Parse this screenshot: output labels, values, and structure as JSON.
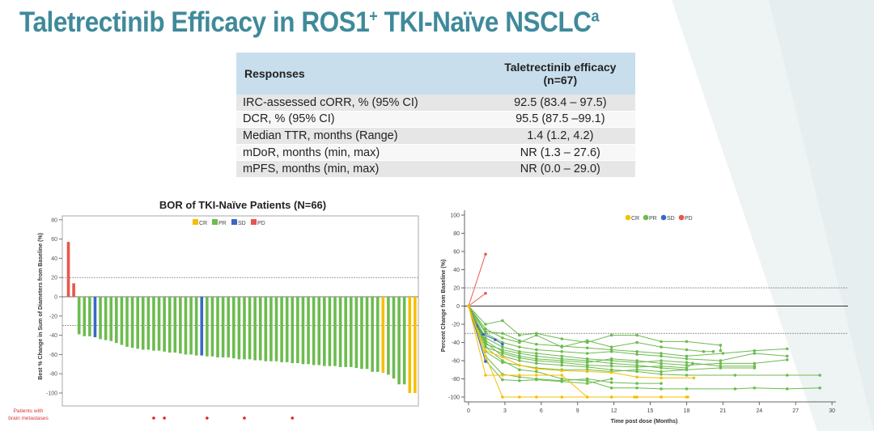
{
  "slide": {
    "title": "Taletrectinib Efficacy in ROS1",
    "title_sup1": "+",
    "title_rest": " TKI-Naïve NSCLC",
    "title_sup2": "a"
  },
  "table": {
    "headers": [
      "Responses",
      "Taletrectinib efficacy",
      "(n=67)"
    ],
    "rows": [
      [
        "IRC-assessed cORR, % (95% CI)",
        "92.5 (83.4 – 97.5)"
      ],
      [
        "DCR, % (95% CI)",
        "95.5 (87.5 –99.1)"
      ],
      [
        "Median TTR, months (Range)",
        "1.4 (1.2, 4.2)"
      ],
      [
        "mDoR, months (min, max)",
        "NR (1.3 – 27.6)"
      ],
      [
        "mPFS, months (min, max)",
        "NR (0.0 – 29.0)"
      ]
    ]
  },
  "colors": {
    "CR": "#f5c000",
    "PR": "#6dbb4f",
    "SD": "#3a67c4",
    "PD": "#e8554e",
    "title": "#3f8a9a"
  },
  "chart_data": [
    {
      "type": "bar",
      "title": "BOR of TKI-Naïve Patients (N=66)",
      "ylabel": "Best % Change in Sum of Diameters from Baseline (%)",
      "ylim": [
        -100,
        80
      ],
      "yticks": [
        "80",
        "60",
        "40",
        "20",
        "0",
        "-20",
        "-40",
        "-60",
        "-80",
        "-100"
      ],
      "reference_lines": [
        20,
        -30
      ],
      "legend": [
        "CR",
        "PR",
        "SD",
        "PD"
      ],
      "legend_position": "top-center",
      "values": [
        57,
        14,
        -39,
        -41,
        -41,
        -42,
        -44,
        -45,
        -46,
        -48,
        -50,
        -52,
        -53,
        -54,
        -55,
        -55,
        -56,
        -56,
        -57,
        -58,
        -58,
        -59,
        -60,
        -60,
        -61,
        -61,
        -62,
        -62,
        -63,
        -63,
        -63,
        -64,
        -65,
        -65,
        -65,
        -66,
        -66,
        -67,
        -67,
        -67,
        -68,
        -68,
        -69,
        -69,
        -70,
        -70,
        -71,
        -71,
        -72,
        -72,
        -72,
        -73,
        -73,
        -73,
        -74,
        -75,
        -75,
        -78,
        -78,
        -79,
        -81,
        -85,
        -91,
        -91,
        -100,
        -100
      ],
      "response": [
        "PD",
        "PD",
        "PR",
        "PR",
        "PR",
        "SD",
        "PR",
        "PR",
        "PR",
        "PR",
        "PR",
        "PR",
        "PR",
        "PR",
        "PR",
        "PR",
        "PR",
        "PR",
        "PR",
        "PR",
        "PR",
        "PR",
        "PR",
        "PR",
        "PR",
        "SD",
        "PR",
        "PR",
        "PR",
        "PR",
        "PR",
        "PR",
        "PR",
        "PR",
        "PR",
        "PR",
        "PR",
        "PR",
        "PR",
        "PR",
        "PR",
        "PR",
        "PR",
        "PR",
        "PR",
        "PR",
        "PR",
        "PR",
        "PR",
        "PR",
        "PR",
        "PR",
        "PR",
        "PR",
        "PR",
        "PR",
        "PR",
        "PR",
        "PR",
        "CR",
        "PR",
        "PR",
        "PR",
        "PR",
        "CR",
        "CR"
      ],
      "brain_metastases_label": [
        "Patients with",
        "brain metastases"
      ],
      "brain_metastases_indices": [
        16,
        18,
        26,
        33,
        42
      ]
    },
    {
      "type": "line",
      "xlabel": "Time post dose (Months)",
      "ylabel": "Percent Change from Baseline (%)",
      "xlim": [
        0,
        30
      ],
      "ylim": [
        -100,
        100
      ],
      "xticks": [
        "0",
        "3",
        "6",
        "9",
        "12",
        "15",
        "18",
        "21",
        "24",
        "27",
        "30"
      ],
      "yticks": [
        "100",
        "80",
        "60",
        "40",
        "20",
        "0",
        "-20",
        "-40",
        "-60",
        "-80",
        "-100"
      ],
      "reference_lines": [
        20,
        0,
        -30
      ],
      "legend": [
        "CR",
        "PR",
        "SD",
        "PD"
      ],
      "legend_position": "top-center",
      "series": [
        {
          "group": "PD",
          "points": [
            [
              0,
              0
            ],
            [
              1.4,
              57
            ]
          ]
        },
        {
          "group": "PD",
          "points": [
            [
              0,
              0
            ],
            [
              1.4,
              14
            ]
          ]
        },
        {
          "group": "PR",
          "points": [
            [
              0,
              0
            ],
            [
              1.4,
              -20
            ],
            [
              2.8,
              -16
            ],
            [
              4.2,
              -32
            ],
            [
              5.6,
              -30
            ],
            [
              7.7,
              -36
            ],
            [
              9.8,
              -40
            ],
            [
              11.8,
              -32
            ],
            [
              13.9,
              -32
            ],
            [
              15.9,
              -39
            ],
            [
              18,
              -39
            ],
            [
              20.8,
              -43
            ],
            [
              20.8,
              -49
            ]
          ]
        },
        {
          "group": "PR",
          "points": [
            [
              0,
              0
            ],
            [
              1.4,
              -28
            ],
            [
              2.8,
              -30
            ],
            [
              4.2,
              -38
            ],
            [
              5.6,
              -42
            ],
            [
              7.7,
              -44
            ],
            [
              9.8,
              -46
            ],
            [
              11.8,
              -48
            ],
            [
              13.9,
              -50
            ],
            [
              15.9,
              -52
            ],
            [
              18,
              -55
            ],
            [
              21,
              -52
            ],
            [
              23.6,
              -49
            ],
            [
              26.3,
              -47
            ]
          ]
        },
        {
          "group": "PR",
          "points": [
            [
              0,
              0
            ],
            [
              1.4,
              -35
            ],
            [
              2.8,
              -45
            ],
            [
              4.2,
              -50
            ],
            [
              5.6,
              -52
            ],
            [
              7.7,
              -55
            ],
            [
              9.8,
              -58
            ],
            [
              11.8,
              -60
            ],
            [
              13.9,
              -62
            ],
            [
              15.9,
              -60
            ],
            [
              18,
              -62
            ],
            [
              20.8,
              -66
            ],
            [
              23.6,
              -66
            ]
          ]
        },
        {
          "group": "PR",
          "points": [
            [
              0,
              0
            ],
            [
              1.4,
              -40
            ],
            [
              2.8,
              -55
            ],
            [
              4.2,
              -60
            ],
            [
              5.6,
              -63
            ],
            [
              7.7,
              -65
            ],
            [
              9.8,
              -67
            ],
            [
              11.8,
              -70
            ],
            [
              13.9,
              -72
            ],
            [
              15.9,
              -75
            ],
            [
              18,
              -76
            ],
            [
              22,
              -76
            ],
            [
              26.3,
              -76
            ],
            [
              29,
              -76
            ]
          ]
        },
        {
          "group": "PR",
          "points": [
            [
              0,
              0
            ],
            [
              1.4,
              -45
            ],
            [
              2.8,
              -60
            ],
            [
              4.2,
              -70
            ],
            [
              5.6,
              -72
            ],
            [
              7.7,
              -80
            ],
            [
              9.8,
              -82
            ],
            [
              11.8,
              -90
            ],
            [
              13.9,
              -90
            ],
            [
              15.9,
              -91
            ],
            [
              18,
              -91
            ],
            [
              22,
              -91
            ],
            [
              23.6,
              -90
            ],
            [
              26.3,
              -91
            ],
            [
              29,
              -90
            ]
          ]
        },
        {
          "group": "PR",
          "points": [
            [
              0,
              0
            ],
            [
              1.4,
              -30
            ],
            [
              2.8,
              -40
            ],
            [
              4.2,
              -45
            ],
            [
              5.6,
              -48
            ],
            [
              7.7,
              -50
            ],
            [
              9.8,
              -52
            ],
            [
              11.8,
              -50
            ],
            [
              13.9,
              -53
            ],
            [
              15.9,
              -55
            ],
            [
              18,
              -58
            ],
            [
              20.8,
              -60
            ],
            [
              23.6,
              -52
            ],
            [
              26.3,
              -55
            ]
          ]
        },
        {
          "group": "PR",
          "points": [
            [
              0,
              0
            ],
            [
              1.4,
              -50
            ],
            [
              2.8,
              -62
            ],
            [
              4.2,
              -65
            ],
            [
              5.6,
              -68
            ],
            [
              7.7,
              -70
            ],
            [
              9.8,
              -70
            ],
            [
              11.8,
              -72
            ],
            [
              13.9,
              -70
            ],
            [
              15.9,
              -72
            ],
            [
              18,
              -70
            ],
            [
              20.8,
              -68
            ],
            [
              23.6,
              -68
            ]
          ]
        },
        {
          "group": "PR",
          "points": [
            [
              0,
              0
            ],
            [
              1.4,
              -55
            ],
            [
              2.8,
              -75
            ],
            [
              4.2,
              -78
            ],
            [
              5.6,
              -80
            ],
            [
              7.7,
              -82
            ],
            [
              9.8,
              -80
            ],
            [
              11.8,
              -84
            ],
            [
              13.9,
              -85
            ],
            [
              15.9,
              -85
            ]
          ]
        },
        {
          "group": "PR",
          "points": [
            [
              0,
              0
            ],
            [
              1.4,
              -38
            ],
            [
              2.8,
              -50
            ],
            [
              4.2,
              -55
            ],
            [
              5.6,
              -58
            ],
            [
              7.7,
              -60
            ],
            [
              9.8,
              -62
            ],
            [
              11.8,
              -58
            ],
            [
              13.9,
              -60
            ],
            [
              15.9,
              -63
            ],
            [
              18,
              -65
            ],
            [
              20.8,
              -63
            ],
            [
              23.6,
              -63
            ],
            [
              26.3,
              -59
            ]
          ]
        },
        {
          "group": "PR",
          "points": [
            [
              0,
              0
            ],
            [
              1.4,
              -25
            ],
            [
              2.8,
              -35
            ],
            [
              4.2,
              -40
            ],
            [
              5.6,
              -32
            ],
            [
              7.7,
              -45
            ],
            [
              9.8,
              -38
            ],
            [
              11.8,
              -45
            ],
            [
              13.9,
              -40
            ],
            [
              15.9,
              -45
            ],
            [
              18,
              -48
            ],
            [
              19.4,
              -50
            ],
            [
              20.2,
              -50
            ]
          ]
        },
        {
          "group": "PR",
          "points": [
            [
              0,
              0
            ],
            [
              1.4,
              -60
            ],
            [
              2.8,
              -81
            ],
            [
              4.2,
              -82
            ],
            [
              5.6,
              -81
            ],
            [
              7.7,
              -83
            ],
            [
              9.8,
              -85
            ],
            [
              11.8,
              -80
            ]
          ]
        },
        {
          "group": "PR",
          "points": [
            [
              0,
              0
            ],
            [
              1.4,
              -45
            ],
            [
              2.8,
              -52
            ],
            [
              4.2,
              -57
            ],
            [
              5.6,
              -60
            ],
            [
              7.7,
              -62
            ],
            [
              9.8,
              -65
            ],
            [
              11.8,
              -66
            ],
            [
              13.9,
              -67
            ],
            [
              15.9,
              -66
            ],
            [
              18,
              -68
            ],
            [
              18.5,
              -63
            ]
          ]
        },
        {
          "group": "PR",
          "points": [
            [
              0,
              0
            ],
            [
              1.4,
              -42
            ],
            [
              2.8,
              -48
            ],
            [
              4.2,
              -52
            ],
            [
              5.6,
              -55
            ],
            [
              7.7,
              -58
            ],
            [
              9.8,
              -60
            ],
            [
              11.8,
              -63
            ],
            [
              13.9,
              -65
            ],
            [
              15.9,
              -68
            ],
            [
              18,
              -70
            ]
          ]
        },
        {
          "group": "SD",
          "points": [
            [
              0,
              0
            ],
            [
              0.7,
              -22
            ],
            [
              1.2,
              -31
            ],
            [
              2.2,
              -37
            ],
            [
              2.8,
              -42
            ]
          ]
        },
        {
          "group": "SD",
          "points": [
            [
              0,
              0
            ],
            [
              1.4,
              -61
            ]
          ]
        },
        {
          "group": "CR",
          "points": [
            [
              0,
              0
            ],
            [
              1.4,
              -49
            ],
            [
              2.8,
              -56
            ],
            [
              4.2,
              -65
            ],
            [
              5.6,
              -69
            ],
            [
              7.7,
              -71
            ],
            [
              9.8,
              -72
            ],
            [
              11.8,
              -73
            ],
            [
              13.9,
              -78
            ],
            [
              15.9,
              -79
            ],
            [
              18.6,
              -79
            ]
          ]
        },
        {
          "group": "CR",
          "points": [
            [
              0,
              0
            ],
            [
              1.4,
              -76
            ],
            [
              2.8,
              -76
            ],
            [
              4.2,
              -76
            ],
            [
              5.6,
              -76
            ],
            [
              7.7,
              -76
            ],
            [
              9.8,
              -100
            ],
            [
              11.8,
              -100
            ],
            [
              13.9,
              -100
            ],
            [
              15.9,
              -100
            ],
            [
              18,
              -100
            ]
          ]
        },
        {
          "group": "CR",
          "points": [
            [
              0,
              0
            ],
            [
              1.4,
              -55
            ],
            [
              2.8,
              -100
            ],
            [
              4.2,
              -100
            ],
            [
              5.6,
              -100
            ],
            [
              7.7,
              -100
            ],
            [
              9.8,
              -100
            ],
            [
              11.8,
              -100
            ],
            [
              13.7,
              -100
            ],
            [
              15.9,
              -100
            ],
            [
              18.1,
              -100
            ]
          ]
        }
      ]
    }
  ]
}
